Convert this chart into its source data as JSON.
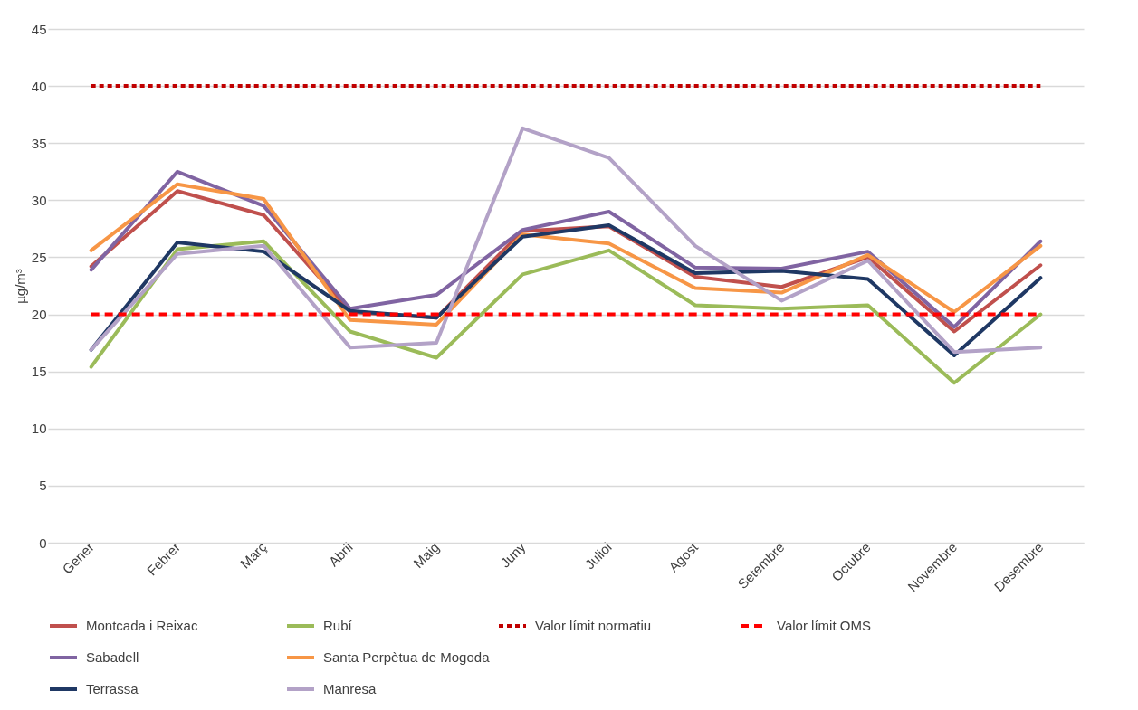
{
  "chart_data": {
    "type": "line",
    "ylabel": "µg/m³",
    "categories": [
      "Gener",
      "Febrer",
      "Març",
      "Abril",
      "Maig",
      "Juny",
      "Juliol",
      "Agost",
      "Setembre",
      "Octubre",
      "Novembre",
      "Desembre"
    ],
    "series": [
      {
        "name": "Montcada i Reixac",
        "color": "#c0504d",
        "values": [
          24.2,
          30.8,
          28.7,
          20.2,
          19.7,
          27.3,
          27.7,
          23.3,
          22.4,
          25.0,
          18.5,
          24.3
        ]
      },
      {
        "name": "Rubí",
        "color": "#9bbb59",
        "values": [
          15.4,
          25.7,
          26.4,
          18.5,
          16.2,
          23.5,
          25.6,
          20.8,
          20.5,
          20.8,
          14.0,
          20.0
        ]
      },
      {
        "name": "Sabadell",
        "color": "#8064a2",
        "values": [
          23.9,
          32.5,
          29.5,
          20.5,
          21.7,
          27.4,
          29.0,
          24.1,
          24.0,
          25.5,
          18.9,
          26.4
        ]
      },
      {
        "name": "Santa Perpètua de Mogoda",
        "color": "#f79646",
        "values": [
          25.6,
          31.4,
          30.1,
          19.5,
          19.1,
          27.0,
          26.2,
          22.3,
          21.9,
          25.2,
          20.2,
          26.0
        ]
      },
      {
        "name": "Terrassa",
        "color": "#1f3864",
        "values": [
          16.9,
          26.3,
          25.5,
          20.3,
          19.7,
          26.8,
          27.8,
          23.6,
          23.8,
          23.1,
          16.4,
          23.2
        ]
      },
      {
        "name": "Manresa",
        "color": "#b3a2c7",
        "values": [
          16.9,
          25.3,
          26.0,
          17.1,
          17.5,
          36.3,
          33.7,
          26.0,
          21.2,
          24.7,
          16.7,
          17.1
        ]
      }
    ],
    "ref_lines": [
      {
        "axis": "y",
        "value": 40,
        "label": "Valor límit normatiu",
        "color": "#c00000",
        "line_style": "dotted"
      },
      {
        "axis": "y",
        "value": 20,
        "label": "Valor límit OMS",
        "color": "#ff0000",
        "line_style": "dashed"
      }
    ],
    "ylim": [
      0,
      45
    ],
    "yticks": [
      0,
      5,
      10,
      15,
      20,
      25,
      30,
      35,
      40,
      45
    ],
    "grid": "y",
    "legend": "bottom",
    "marker": "none",
    "line_style": "solid"
  }
}
